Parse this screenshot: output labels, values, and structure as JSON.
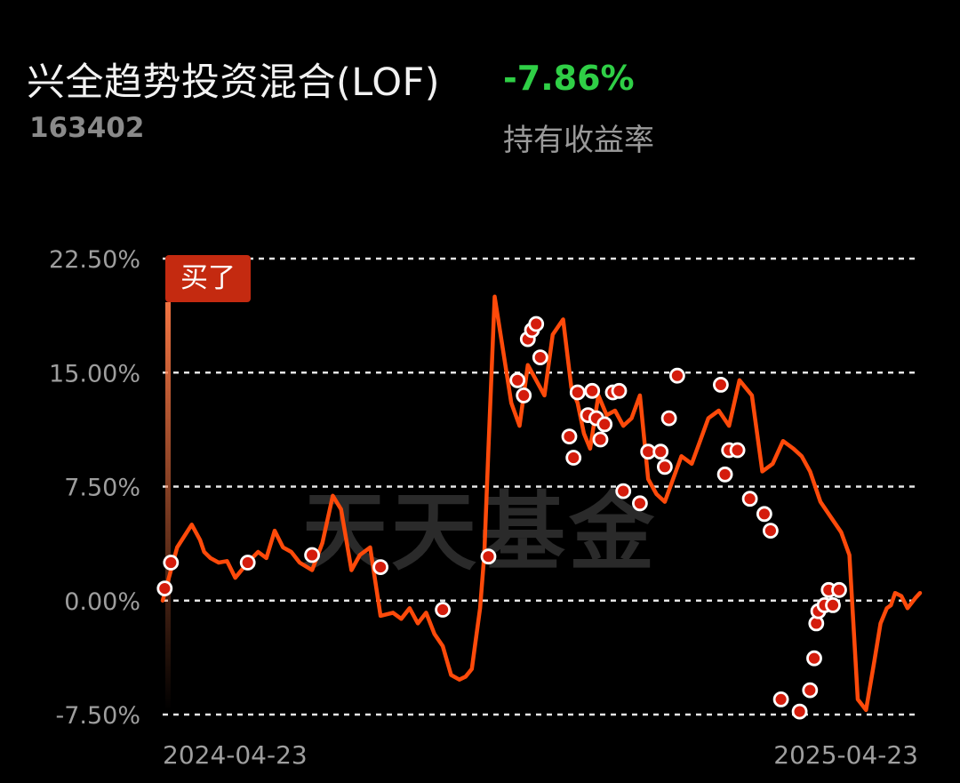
{
  "fund": {
    "name": "兴全趋势投资混合(LOF)",
    "code": "163402",
    "holding_return": "-7.86%",
    "holding_return_label": "持有收益率"
  },
  "buy_label": "买了",
  "watermark": "天天基金",
  "colors": {
    "line": "#ff4a0a",
    "return_negative": "#2fcf46",
    "badge": "#c42a10",
    "grid": "#ffffff"
  },
  "chart_data": {
    "type": "line",
    "yticks": [
      "22.50%",
      "15.00%",
      "7.50%",
      "0.00%",
      "-7.50%"
    ],
    "ytick_values": [
      22.5,
      15.0,
      7.5,
      0.0,
      -7.5
    ],
    "ylim": [
      -7.5,
      22.5
    ],
    "xticks": [
      "2024-04-23",
      "2025-04-23"
    ],
    "xlim": [
      "2024-04-23",
      "2025-04-23"
    ],
    "grid": "horizontal-dashed",
    "series": [
      {
        "x": [
          "2024-04-23",
          "2024-04-30",
          "2024-05-07",
          "2024-05-11",
          "2024-05-13",
          "2024-05-16",
          "2024-05-20",
          "2024-05-24",
          "2024-05-28",
          "2024-06-03",
          "2024-06-08",
          "2024-06-12",
          "2024-06-16",
          "2024-06-20",
          "2024-06-24",
          "2024-06-28",
          "2024-07-04",
          "2024-07-09",
          "2024-07-14",
          "2024-07-18",
          "2024-07-23",
          "2024-07-27",
          "2024-08-01",
          "2024-08-06",
          "2024-08-12",
          "2024-08-16",
          "2024-08-20",
          "2024-08-24",
          "2024-08-28",
          "2024-09-01",
          "2024-09-05",
          "2024-09-09",
          "2024-09-13",
          "2024-09-16",
          "2024-09-19",
          "2024-09-23",
          "2024-09-25",
          "2024-09-27",
          "2024-09-30",
          "2024-10-08",
          "2024-10-12",
          "2024-10-16",
          "2024-10-20",
          "2024-10-24",
          "2024-10-28",
          "2024-11-02",
          "2024-11-06",
          "2024-11-09",
          "2024-11-12",
          "2024-11-15",
          "2024-11-19",
          "2024-11-23",
          "2024-11-27",
          "2024-12-01",
          "2024-12-05",
          "2024-12-09",
          "2024-12-13",
          "2024-12-17",
          "2024-12-21",
          "2024-12-25",
          "2024-12-29",
          "2025-01-03",
          "2025-01-07",
          "2025-01-11",
          "2025-01-16",
          "2025-01-21",
          "2025-01-26",
          "2025-02-01",
          "2025-02-06",
          "2025-02-11",
          "2025-02-16",
          "2025-02-21",
          "2025-02-25",
          "2025-03-01",
          "2025-03-06",
          "2025-03-11",
          "2025-03-16",
          "2025-03-20",
          "2025-03-24",
          "2025-03-28",
          "2025-04-01",
          "2025-04-04",
          "2025-04-07",
          "2025-04-09",
          "2025-04-11",
          "2025-04-14",
          "2025-04-17",
          "2025-04-21",
          "2025-04-23"
        ],
        "y": [
          0.0,
          3.5,
          5.0,
          4.0,
          3.2,
          2.8,
          2.5,
          2.6,
          1.5,
          2.5,
          3.2,
          2.8,
          4.6,
          3.5,
          3.2,
          2.5,
          2.0,
          3.8,
          6.9,
          6.0,
          2.0,
          3.0,
          3.5,
          -1.0,
          -0.8,
          -1.2,
          -0.5,
          -1.5,
          -0.8,
          -2.2,
          -3.0,
          -4.9,
          -5.2,
          -5.0,
          -4.5,
          -0.5,
          3.0,
          10.0,
          20.0,
          13.0,
          11.5,
          15.5,
          14.5,
          13.5,
          17.5,
          18.5,
          14.0,
          13.0,
          11.0,
          10.0,
          13.5,
          12.2,
          12.5,
          11.5,
          12.0,
          13.5,
          8.0,
          7.0,
          6.5,
          8.0,
          9.5,
          9.0,
          10.5,
          12.0,
          12.5,
          11.5,
          14.5,
          13.5,
          8.5,
          9.0,
          10.5,
          10.0,
          9.5,
          8.5,
          6.5,
          5.5,
          4.5,
          3.0,
          -6.5,
          -7.2,
          -4.0,
          -1.5,
          -0.5,
          -0.3,
          0.5,
          0.3,
          -0.5,
          0.2,
          0.5
        ]
      }
    ],
    "markers_x": [
      "2024-04-24",
      "2024-04-27",
      "2024-06-03",
      "2024-07-04",
      "2024-08-06",
      "2024-09-05",
      "2024-09-27",
      "2024-10-11",
      "2024-10-14",
      "2024-10-16",
      "2024-10-18",
      "2024-10-20",
      "2024-10-22",
      "2024-11-05",
      "2024-11-07",
      "2024-11-09",
      "2024-11-14",
      "2024-11-16",
      "2024-11-18",
      "2024-11-20",
      "2024-11-22",
      "2024-11-26",
      "2024-11-29",
      "2024-12-01",
      "2024-12-09",
      "2024-12-13",
      "2024-12-19",
      "2024-12-21",
      "2024-12-23",
      "2024-12-27",
      "2025-01-17",
      "2025-01-19",
      "2025-01-21",
      "2025-01-25",
      "2025-01-31",
      "2025-02-07",
      "2025-02-10",
      "2025-02-15",
      "2025-02-24",
      "2025-03-01",
      "2025-03-03",
      "2025-03-04",
      "2025-03-05",
      "2025-03-08",
      "2025-03-10",
      "2025-03-12",
      "2025-03-15"
    ],
    "markers_y": [
      0.8,
      2.5,
      2.5,
      3.0,
      2.2,
      -0.6,
      2.9,
      14.5,
      13.5,
      17.2,
      17.8,
      18.2,
      16.0,
      10.8,
      9.4,
      13.7,
      12.2,
      13.8,
      12.0,
      10.6,
      11.6,
      13.7,
      13.8,
      7.2,
      6.4,
      9.8,
      9.8,
      8.8,
      12.0,
      14.8,
      14.2,
      8.3,
      9.9,
      9.9,
      6.7,
      5.7,
      4.6,
      -6.5,
      -7.3,
      -5.9,
      -3.8,
      -1.5,
      -0.7,
      -0.3,
      0.7,
      -0.3,
      0.7
    ]
  }
}
